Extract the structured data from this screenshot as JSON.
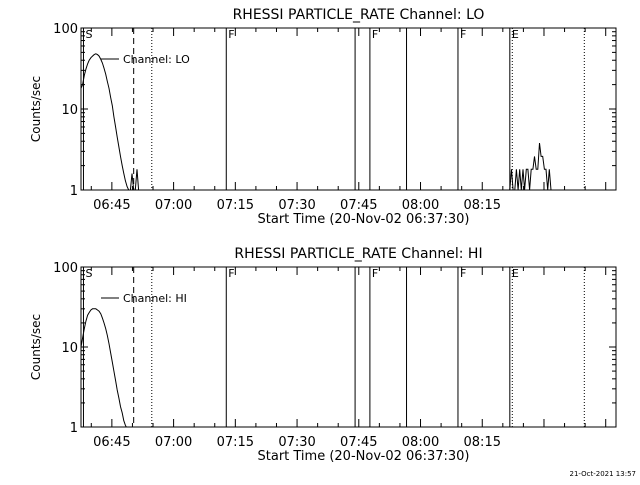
{
  "footer": {
    "timestamp": "21-Oct-2021 13:57"
  },
  "chart_data": [
    {
      "type": "line",
      "title": "RHESSI PARTICLE_RATE Channel: LO",
      "xlabel": "Start Time (20-Nov-02 06:37:30)",
      "ylabel": "Counts/sec",
      "yscale": "log",
      "xlim_min": [
        0,
        97
      ],
      "ylim": [
        1,
        100
      ],
      "x_ticks": [
        {
          "t": 7.5,
          "label": "06:45"
        },
        {
          "t": 22.5,
          "label": "07:00"
        },
        {
          "t": 37.5,
          "label": "07:15"
        },
        {
          "t": 52.5,
          "label": "07:30"
        },
        {
          "t": 67.5,
          "label": "07:45"
        },
        {
          "t": 82.5,
          "label": "08:00"
        },
        {
          "t": 97.5,
          "label": "08:15"
        }
      ],
      "y_ticks": [
        {
          "v": 1,
          "label": "1"
        },
        {
          "v": 10,
          "label": "10"
        },
        {
          "v": 100,
          "label": "100"
        }
      ],
      "legend": {
        "label": "Channel: LO",
        "position": "top-left"
      },
      "markers": [
        {
          "t": 0.6,
          "label": "S",
          "style": "solid"
        },
        {
          "t": 12.8,
          "label": "",
          "style": "dashed"
        },
        {
          "t": 17.2,
          "label": "",
          "style": "dotted"
        },
        {
          "t": 35.3,
          "label": "F",
          "style": "solid"
        },
        {
          "t": 66.6,
          "label": "",
          "style": "solid"
        },
        {
          "t": 70.2,
          "label": "F",
          "style": "solid"
        },
        {
          "t": 79.1,
          "label": "",
          "style": "solid"
        },
        {
          "t": 91.6,
          "label": "F",
          "style": "solid"
        },
        {
          "t": 104.2,
          "label": "E",
          "style": "solid"
        },
        {
          "t": 104.8,
          "label": "",
          "style": "dotted"
        },
        {
          "t": 122.3,
          "label": "",
          "style": "dotted"
        }
      ],
      "series": [
        {
          "segments": [
            [
              [
                0,
                18
              ],
              [
                0.4,
                20
              ],
              [
                0.8,
                26
              ],
              [
                1.2,
                31
              ],
              [
                1.6,
                36
              ],
              [
                2.0,
                40
              ],
              [
                2.4,
                43
              ],
              [
                2.8,
                45
              ],
              [
                3.2,
                47
              ],
              [
                3.6,
                48
              ],
              [
                4.0,
                47
              ],
              [
                4.4,
                45
              ],
              [
                4.8,
                41
              ],
              [
                5.2,
                37
              ],
              [
                5.6,
                32
              ],
              [
                6.0,
                27
              ],
              [
                6.4,
                22
              ],
              [
                6.8,
                18
              ],
              [
                7.2,
                14
              ],
              [
                7.6,
                11
              ],
              [
                8.0,
                8
              ],
              [
                8.4,
                6
              ],
              [
                8.8,
                4.5
              ],
              [
                9.2,
                3.4
              ],
              [
                9.6,
                2.6
              ],
              [
                10.0,
                2.0
              ],
              [
                10.4,
                1.6
              ],
              [
                10.8,
                1.3
              ],
              [
                11.2,
                1.1
              ],
              [
                11.6,
                1.0
              ]
            ],
            [
              [
                12.0,
                1
              ],
              [
                12.4,
                1.6
              ],
              [
                12.8,
                1
              ],
              [
                13.2,
                1
              ],
              [
                13.6,
                1.8
              ],
              [
                14.0,
                1
              ]
            ],
            [
              [
                104.2,
                1
              ],
              [
                104.6,
                1.8
              ],
              [
                105.0,
                1
              ],
              [
                105.4,
                1
              ],
              [
                105.8,
                1.8
              ],
              [
                106.2,
                1
              ],
              [
                106.6,
                1.8
              ],
              [
                107.0,
                1
              ],
              [
                107.4,
                1.8
              ],
              [
                107.8,
                1
              ],
              [
                108.2,
                1.8
              ],
              [
                108.6,
                1.8
              ],
              [
                109.0,
                1
              ],
              [
                109.4,
                1.8
              ],
              [
                109.8,
                1.8
              ],
              [
                110.2,
                2.6
              ],
              [
                110.6,
                1.8
              ],
              [
                111.0,
                1.8
              ],
              [
                111.4,
                3.8
              ],
              [
                111.8,
                2.6
              ],
              [
                112.2,
                2.6
              ],
              [
                112.6,
                1.8
              ],
              [
                113.0,
                1.8
              ],
              [
                113.4,
                1
              ],
              [
                113.8,
                1.8
              ],
              [
                114.2,
                1
              ]
            ]
          ]
        }
      ]
    },
    {
      "type": "line",
      "title": "RHESSI PARTICLE_RATE Channel: HI",
      "xlabel": "Start Time (20-Nov-02 06:37:30)",
      "ylabel": "Counts/sec",
      "yscale": "log",
      "xlim_min": [
        0,
        97
      ],
      "ylim": [
        1,
        100
      ],
      "x_ticks": [
        {
          "t": 7.5,
          "label": "06:45"
        },
        {
          "t": 22.5,
          "label": "07:00"
        },
        {
          "t": 37.5,
          "label": "07:15"
        },
        {
          "t": 52.5,
          "label": "07:30"
        },
        {
          "t": 67.5,
          "label": "07:45"
        },
        {
          "t": 82.5,
          "label": "08:00"
        },
        {
          "t": 97.5,
          "label": "08:15"
        }
      ],
      "y_ticks": [
        {
          "v": 1,
          "label": "1"
        },
        {
          "v": 10,
          "label": "10"
        },
        {
          "v": 100,
          "label": "100"
        }
      ],
      "legend": {
        "label": "Channel: HI",
        "position": "top-left"
      },
      "markers": [
        {
          "t": 0.6,
          "label": "S",
          "style": "solid"
        },
        {
          "t": 12.8,
          "label": "",
          "style": "dashed"
        },
        {
          "t": 17.2,
          "label": "",
          "style": "dotted"
        },
        {
          "t": 35.3,
          "label": "F",
          "style": "solid"
        },
        {
          "t": 66.6,
          "label": "",
          "style": "solid"
        },
        {
          "t": 70.2,
          "label": "F",
          "style": "solid"
        },
        {
          "t": 79.1,
          "label": "",
          "style": "solid"
        },
        {
          "t": 91.6,
          "label": "F",
          "style": "solid"
        },
        {
          "t": 104.2,
          "label": "E",
          "style": "solid"
        },
        {
          "t": 104.8,
          "label": "",
          "style": "dotted"
        },
        {
          "t": 122.3,
          "label": "",
          "style": "dotted"
        }
      ],
      "series": [
        {
          "segments": [
            [
              [
                0,
                10
              ],
              [
                0.4,
                13
              ],
              [
                0.8,
                17
              ],
              [
                1.2,
                21
              ],
              [
                1.6,
                25
              ],
              [
                2.0,
                27
              ],
              [
                2.4,
                29
              ],
              [
                2.8,
                30
              ],
              [
                3.2,
                30
              ],
              [
                3.6,
                30
              ],
              [
                4.0,
                29
              ],
              [
                4.4,
                28
              ],
              [
                4.8,
                26
              ],
              [
                5.2,
                23
              ],
              [
                5.6,
                20
              ],
              [
                6.0,
                17
              ],
              [
                6.4,
                14
              ],
              [
                6.8,
                11
              ],
              [
                7.2,
                8.5
              ],
              [
                7.6,
                6.5
              ],
              [
                8.0,
                5
              ],
              [
                8.4,
                3.8
              ],
              [
                8.8,
                2.9
              ],
              [
                9.2,
                2.3
              ],
              [
                9.6,
                1.8
              ],
              [
                10.0,
                1.5
              ],
              [
                10.4,
                1.2
              ],
              [
                10.8,
                1.05
              ],
              [
                11.0,
                1.0
              ]
            ]
          ]
        }
      ]
    }
  ]
}
